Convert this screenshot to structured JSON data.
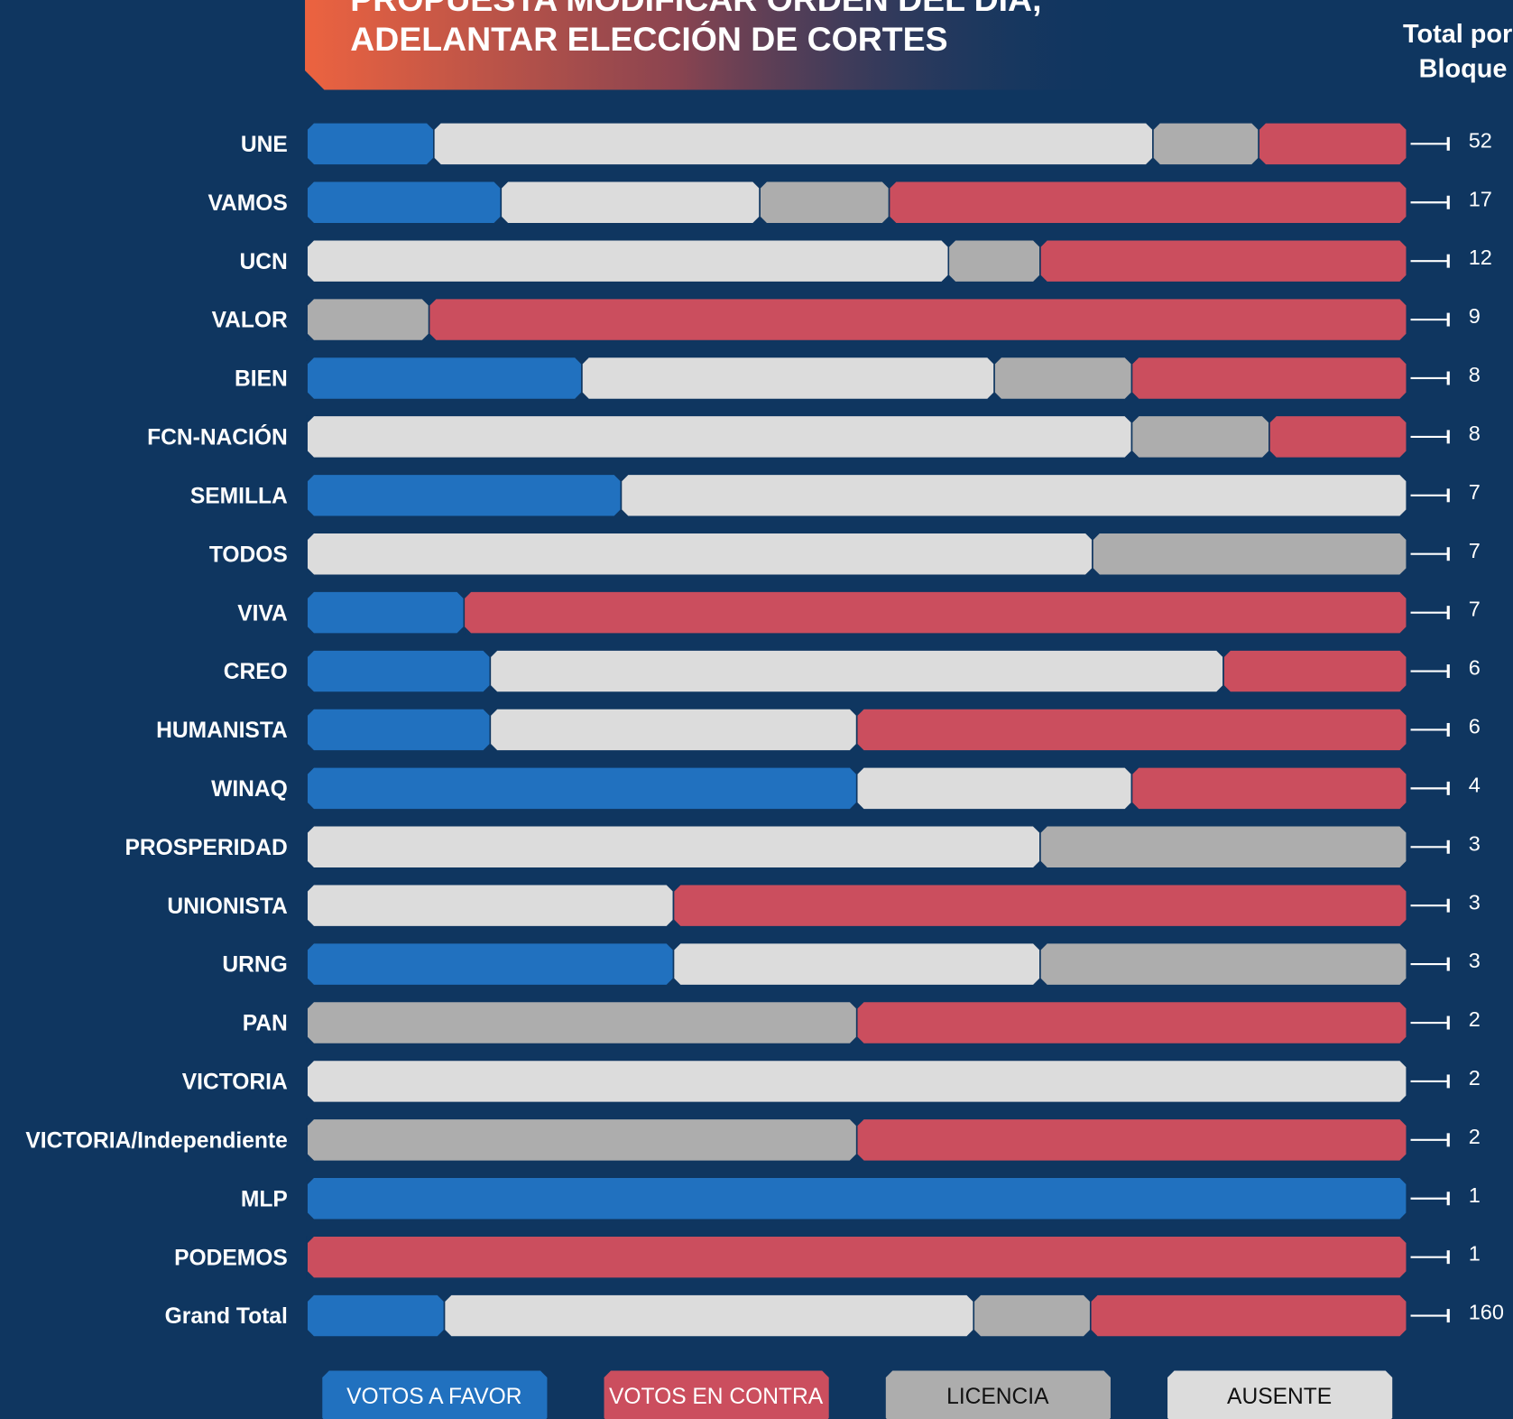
{
  "chart_data": {
    "type": "stacked-bar",
    "orientation": "horizontal",
    "title_lines": [
      "PROPUESTA MODIFICAR ORDEN DEL DÍA,",
      "ADELANTAR ELECCIÓN DE CORTES"
    ],
    "totals_header": [
      "Total por",
      "Bloque"
    ],
    "categories": [
      "UNE",
      "VAMOS",
      "UCN",
      "VALOR",
      "BIEN",
      "FCN-NACIÓN",
      "SEMILLA",
      "TODOS",
      "VIVA",
      "CREO",
      "HUMANISTA",
      "WINAQ",
      "PROSPERIDAD",
      "UNIONISTA",
      "URNG",
      "PAN",
      "VICTORIA",
      "VICTORIA/Independiente",
      "MLP",
      "PODEMOS",
      "Grand Total"
    ],
    "series": [
      {
        "name": "VOTOS A FAVOR",
        "color": "#2171bf",
        "values": [
          6,
          3,
          0,
          0,
          2,
          0,
          2,
          0,
          1,
          1,
          1,
          2,
          0,
          0,
          1,
          0,
          0,
          0,
          1,
          0,
          20
        ]
      },
      {
        "name": "VOTOS EN CONTRA",
        "color": "#cb4e5e",
        "values": [
          7,
          8,
          4,
          8,
          2,
          1,
          0,
          0,
          6,
          1,
          3,
          1,
          0,
          2,
          0,
          1,
          0,
          1,
          0,
          1,
          46
        ]
      },
      {
        "name": "LICENCIA",
        "color": "#adadad",
        "values": [
          5,
          2,
          1,
          1,
          1,
          1,
          0,
          2,
          0,
          0,
          0,
          0,
          1,
          0,
          1,
          1,
          0,
          1,
          0,
          0,
          17
        ]
      },
      {
        "name": "AUSENTE",
        "color": "#dcdcdc",
        "values": [
          34,
          4,
          7,
          0,
          3,
          6,
          5,
          5,
          0,
          4,
          2,
          1,
          2,
          1,
          1,
          0,
          2,
          0,
          0,
          0,
          77
        ]
      }
    ],
    "totals": [
      52,
      17,
      12,
      9,
      8,
      8,
      7,
      7,
      7,
      6,
      6,
      4,
      3,
      3,
      3,
      2,
      2,
      2,
      1,
      1,
      160
    ]
  }
}
